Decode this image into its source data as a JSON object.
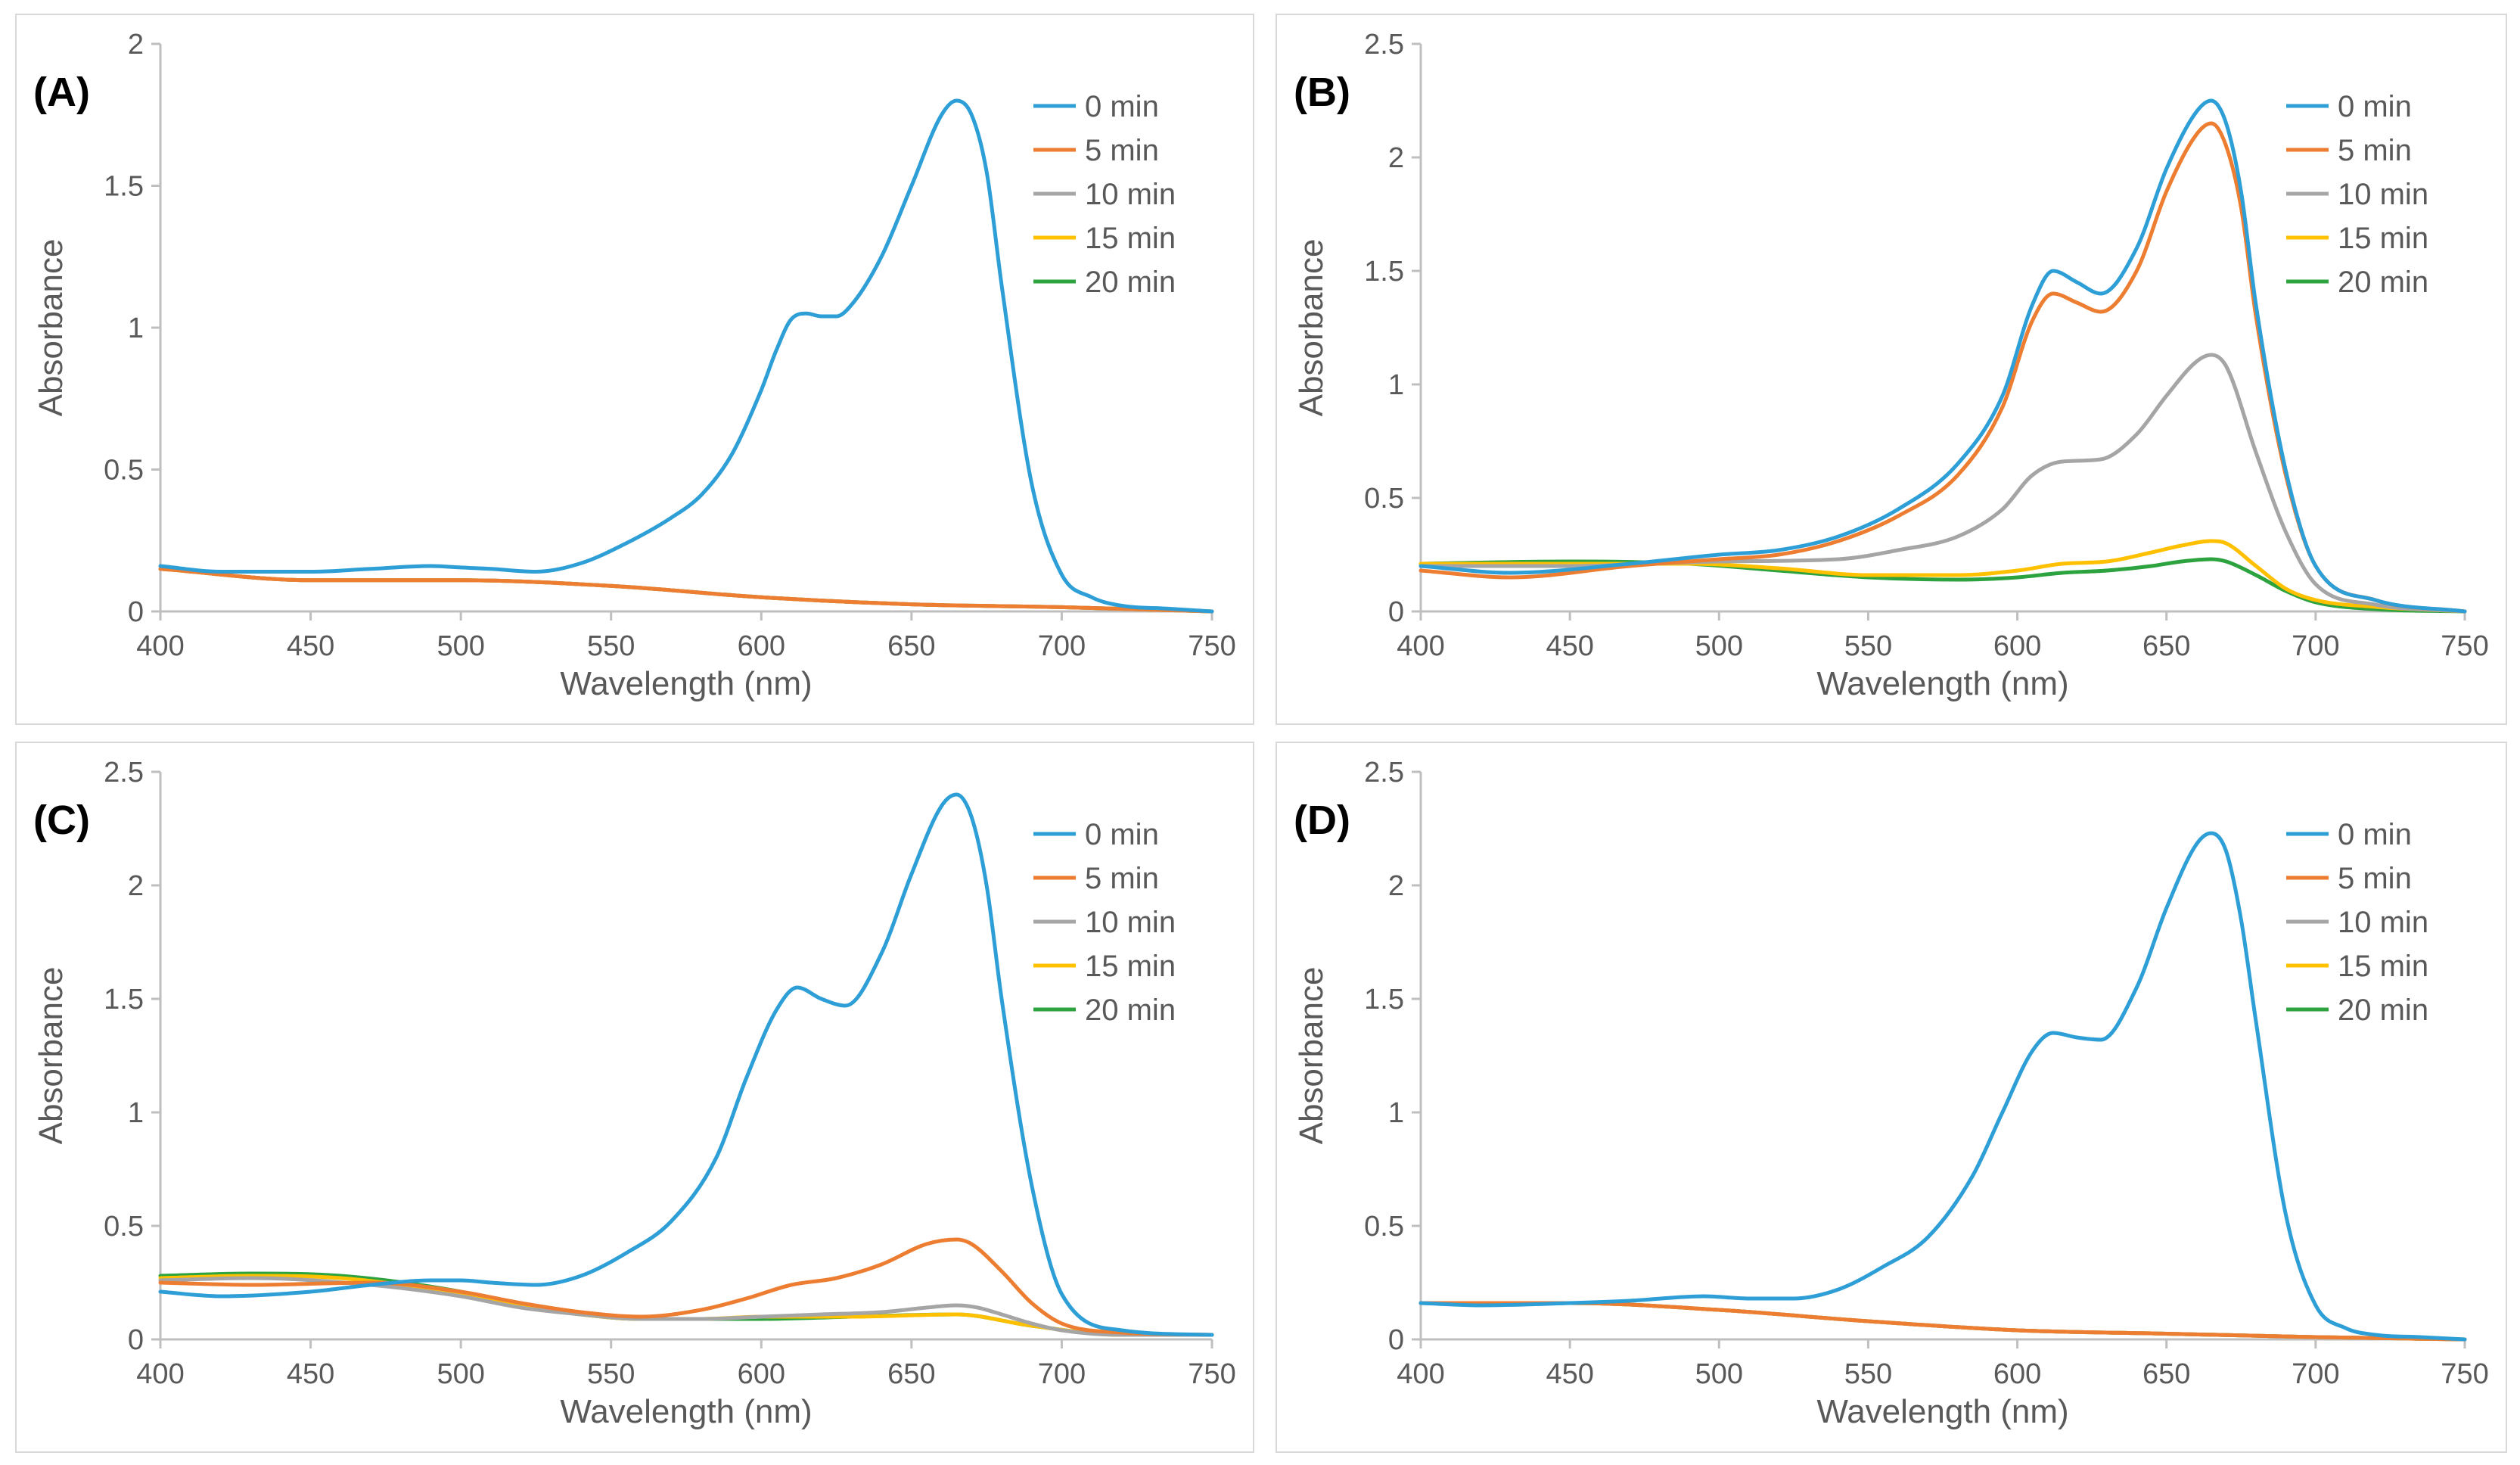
{
  "colors": {
    "0 min": "#2e9fd6",
    "5 min": "#ed7d31",
    "10 min": "#a5a5a5",
    "15 min": "#ffc000",
    "20 min": "#2ca33f",
    "axis": "#bfbfbf",
    "text": "#595959"
  },
  "chart_data": [
    {
      "type": "line",
      "panel_label": "(A)",
      "xlabel": "Wavelength (nm)",
      "ylabel": "Absorbance",
      "xlim": [
        400,
        750
      ],
      "ylim": [
        0,
        2
      ],
      "xticks": [
        400,
        450,
        500,
        550,
        600,
        650,
        700,
        750
      ],
      "xtick_labels": [
        "400",
        "450",
        "500",
        "550",
        "600",
        "650",
        "700",
        "750"
      ],
      "yticks": [
        0,
        0.5,
        1,
        1.5,
        2
      ],
      "ytick_labels": [
        "0",
        "0.5",
        "1",
        "1.5",
        "2"
      ],
      "legend_position": "top-right",
      "grid": false,
      "series": [
        {
          "name": "0 min",
          "x": [
            400,
            420,
            450,
            470,
            490,
            500,
            510,
            525,
            540,
            555,
            570,
            580,
            590,
            600,
            605,
            610,
            615,
            620,
            625,
            630,
            640,
            650,
            660,
            665,
            670,
            675,
            680,
            690,
            700,
            710,
            720,
            735,
            750
          ],
          "y": [
            0.16,
            0.14,
            0.14,
            0.15,
            0.16,
            0.155,
            0.15,
            0.14,
            0.17,
            0.24,
            0.33,
            0.41,
            0.55,
            0.78,
            0.92,
            1.03,
            1.05,
            1.04,
            1.04,
            1.08,
            1.25,
            1.5,
            1.75,
            1.8,
            1.75,
            1.55,
            1.15,
            0.45,
            0.13,
            0.05,
            0.02,
            0.01,
            0.0
          ]
        },
        {
          "name": "5 min",
          "x": [
            400,
            450,
            500,
            550,
            600,
            650,
            700,
            750
          ],
          "y": [
            0.15,
            0.11,
            0.11,
            0.09,
            0.05,
            0.025,
            0.015,
            0.0
          ]
        },
        {
          "name": "10 min",
          "x": [
            400,
            450,
            500,
            550,
            600,
            650,
            700,
            750
          ],
          "y": [
            0.15,
            0.11,
            0.11,
            0.09,
            0.05,
            0.025,
            0.015,
            0.0
          ]
        },
        {
          "name": "15 min",
          "x": [
            400,
            450,
            500,
            550,
            600,
            650,
            700,
            750
          ],
          "y": [
            0.15,
            0.11,
            0.11,
            0.09,
            0.05,
            0.025,
            0.015,
            0.0
          ]
        },
        {
          "name": "20 min",
          "x": [
            400,
            450,
            500,
            550,
            600,
            650,
            700,
            750
          ],
          "y": [
            0.15,
            0.11,
            0.11,
            0.09,
            0.05,
            0.025,
            0.015,
            0.0
          ]
        }
      ]
    },
    {
      "type": "line",
      "panel_label": "(B)",
      "xlabel": "Wavelength (nm)",
      "ylabel": "Absorbance",
      "xlim": [
        400,
        750
      ],
      "ylim": [
        0,
        2.5
      ],
      "xticks": [
        400,
        450,
        500,
        550,
        600,
        650,
        700,
        750
      ],
      "xtick_labels": [
        "400",
        "450",
        "500",
        "550",
        "600",
        "650",
        "700",
        "750"
      ],
      "yticks": [
        0,
        0.5,
        1,
        1.5,
        2,
        2.5
      ],
      "ytick_labels": [
        "0",
        "0.5",
        "1",
        "1.5",
        "2",
        "2.5"
      ],
      "legend_position": "top-right",
      "grid": false,
      "series": [
        {
          "name": "0 min",
          "x": [
            400,
            430,
            470,
            500,
            520,
            540,
            560,
            580,
            595,
            605,
            612,
            620,
            628,
            640,
            650,
            660,
            665,
            670,
            675,
            680,
            690,
            700,
            720,
            750
          ],
          "y": [
            0.2,
            0.17,
            0.21,
            0.25,
            0.27,
            0.33,
            0.45,
            0.65,
            0.95,
            1.35,
            1.5,
            1.45,
            1.4,
            1.6,
            1.95,
            2.2,
            2.25,
            2.15,
            1.85,
            1.35,
            0.62,
            0.2,
            0.05,
            0.0
          ]
        },
        {
          "name": "5 min",
          "x": [
            400,
            430,
            470,
            500,
            520,
            540,
            560,
            580,
            595,
            605,
            612,
            620,
            628,
            640,
            650,
            660,
            665,
            670,
            675,
            680,
            690,
            700,
            720,
            750
          ],
          "y": [
            0.18,
            0.15,
            0.2,
            0.23,
            0.25,
            0.31,
            0.42,
            0.6,
            0.9,
            1.28,
            1.4,
            1.36,
            1.32,
            1.5,
            1.85,
            2.1,
            2.15,
            2.05,
            1.78,
            1.3,
            0.6,
            0.2,
            0.05,
            0.0
          ]
        },
        {
          "name": "10 min",
          "x": [
            400,
            450,
            500,
            540,
            560,
            580,
            595,
            605,
            615,
            628,
            640,
            650,
            660,
            665,
            670,
            680,
            690,
            700,
            720,
            750
          ],
          "y": [
            0.2,
            0.2,
            0.22,
            0.23,
            0.27,
            0.33,
            0.45,
            0.6,
            0.66,
            0.67,
            0.78,
            0.95,
            1.1,
            1.13,
            1.08,
            0.7,
            0.35,
            0.12,
            0.03,
            0.0
          ]
        },
        {
          "name": "15 min",
          "x": [
            400,
            450,
            490,
            520,
            550,
            580,
            600,
            615,
            630,
            645,
            655,
            665,
            670,
            680,
            690,
            700,
            720,
            750
          ],
          "y": [
            0.21,
            0.21,
            0.21,
            0.19,
            0.16,
            0.16,
            0.18,
            0.21,
            0.22,
            0.26,
            0.29,
            0.31,
            0.3,
            0.2,
            0.1,
            0.05,
            0.02,
            0.0
          ]
        },
        {
          "name": "20 min",
          "x": [
            400,
            450,
            490,
            520,
            550,
            580,
            600,
            615,
            630,
            645,
            655,
            665,
            670,
            680,
            690,
            700,
            720,
            750
          ],
          "y": [
            0.21,
            0.22,
            0.21,
            0.18,
            0.15,
            0.14,
            0.15,
            0.17,
            0.18,
            0.2,
            0.22,
            0.23,
            0.22,
            0.16,
            0.09,
            0.04,
            0.01,
            0.0
          ]
        }
      ]
    },
    {
      "type": "line",
      "panel_label": "(C)",
      "xlabel": "Wavelength (nm)",
      "ylabel": "Absorbance",
      "xlim": [
        400,
        750
      ],
      "ylim": [
        0,
        2.5
      ],
      "xticks": [
        400,
        450,
        500,
        550,
        600,
        650,
        700,
        750
      ],
      "xtick_labels": [
        "400",
        "450",
        "500",
        "550",
        "600",
        "650",
        "700",
        "750"
      ],
      "yticks": [
        0,
        0.5,
        1,
        1.5,
        2,
        2.5
      ],
      "ytick_labels": [
        "0",
        "0.5",
        "1",
        "1.5",
        "2",
        "2.5"
      ],
      "legend_position": "top-right",
      "grid": false,
      "series": [
        {
          "name": "0 min",
          "x": [
            400,
            420,
            450,
            470,
            490,
            500,
            510,
            525,
            540,
            555,
            570,
            585,
            595,
            605,
            612,
            620,
            628,
            640,
            650,
            660,
            665,
            670,
            675,
            680,
            690,
            700,
            720,
            750
          ],
          "y": [
            0.21,
            0.19,
            0.21,
            0.24,
            0.26,
            0.26,
            0.25,
            0.24,
            0.28,
            0.38,
            0.52,
            0.8,
            1.15,
            1.45,
            1.55,
            1.5,
            1.47,
            1.7,
            2.05,
            2.35,
            2.4,
            2.3,
            2.0,
            1.5,
            0.68,
            0.2,
            0.04,
            0.02
          ]
        },
        {
          "name": "5 min",
          "x": [
            400,
            430,
            470,
            500,
            520,
            540,
            560,
            580,
            595,
            610,
            625,
            640,
            655,
            665,
            670,
            680,
            690,
            700,
            720,
            750
          ],
          "y": [
            0.25,
            0.24,
            0.25,
            0.21,
            0.16,
            0.12,
            0.1,
            0.13,
            0.18,
            0.24,
            0.27,
            0.33,
            0.42,
            0.44,
            0.42,
            0.3,
            0.16,
            0.07,
            0.03,
            0.02
          ]
        },
        {
          "name": "10 min",
          "x": [
            400,
            430,
            470,
            500,
            520,
            540,
            560,
            580,
            600,
            620,
            640,
            655,
            665,
            672,
            680,
            690,
            700,
            720,
            750
          ],
          "y": [
            0.26,
            0.27,
            0.24,
            0.19,
            0.14,
            0.11,
            0.09,
            0.09,
            0.1,
            0.11,
            0.12,
            0.14,
            0.15,
            0.14,
            0.11,
            0.07,
            0.04,
            0.02,
            0.02
          ]
        },
        {
          "name": "15 min",
          "x": [
            400,
            430,
            460,
            500,
            520,
            540,
            560,
            580,
            600,
            630,
            665,
            690,
            720,
            750
          ],
          "y": [
            0.27,
            0.28,
            0.27,
            0.2,
            0.15,
            0.11,
            0.09,
            0.09,
            0.1,
            0.1,
            0.11,
            0.06,
            0.02,
            0.02
          ]
        },
        {
          "name": "20 min",
          "x": [
            400,
            430,
            460,
            500,
            520,
            540,
            560,
            580,
            600,
            630,
            665,
            690,
            720,
            750
          ],
          "y": [
            0.28,
            0.29,
            0.28,
            0.21,
            0.15,
            0.11,
            0.09,
            0.09,
            0.09,
            0.1,
            0.11,
            0.06,
            0.02,
            0.02
          ]
        }
      ]
    },
    {
      "type": "line",
      "panel_label": "(D)",
      "xlabel": "Wavelength (nm)",
      "ylabel": "Absorbance",
      "xlim": [
        400,
        750
      ],
      "ylim": [
        0,
        2.5
      ],
      "xticks": [
        400,
        450,
        500,
        550,
        600,
        650,
        700,
        750
      ],
      "xtick_labels": [
        "400",
        "450",
        "500",
        "550",
        "600",
        "650",
        "700",
        "750"
      ],
      "yticks": [
        0,
        0.5,
        1,
        1.5,
        2,
        2.5
      ],
      "ytick_labels": [
        "0",
        "0.5",
        "1",
        "1.5",
        "2",
        "2.5"
      ],
      "legend_position": "top-right",
      "grid": false,
      "series": [
        {
          "name": "0 min",
          "x": [
            400,
            420,
            450,
            470,
            495,
            510,
            525,
            540,
            555,
            570,
            585,
            595,
            605,
            612,
            620,
            628,
            640,
            650,
            660,
            665,
            670,
            675,
            680,
            690,
            700,
            710,
            720,
            735,
            750
          ],
          "y": [
            0.16,
            0.15,
            0.16,
            0.17,
            0.19,
            0.18,
            0.18,
            0.22,
            0.32,
            0.45,
            0.72,
            1.0,
            1.27,
            1.35,
            1.33,
            1.32,
            1.55,
            1.9,
            2.18,
            2.23,
            2.15,
            1.85,
            1.4,
            0.55,
            0.15,
            0.05,
            0.02,
            0.01,
            0.0
          ]
        },
        {
          "name": "5 min",
          "x": [
            400,
            450,
            500,
            550,
            600,
            650,
            700,
            750
          ],
          "y": [
            0.16,
            0.16,
            0.13,
            0.08,
            0.04,
            0.025,
            0.01,
            0.0
          ]
        },
        {
          "name": "10 min",
          "x": [
            400,
            450,
            500,
            550,
            600,
            650,
            700,
            750
          ],
          "y": [
            0.16,
            0.16,
            0.13,
            0.08,
            0.04,
            0.025,
            0.01,
            0.0
          ]
        },
        {
          "name": "15 min",
          "x": [
            400,
            450,
            500,
            550,
            600,
            650,
            700,
            750
          ],
          "y": [
            0.16,
            0.16,
            0.13,
            0.08,
            0.04,
            0.025,
            0.01,
            0.0
          ]
        },
        {
          "name": "20 min",
          "x": [
            400,
            450,
            500,
            550,
            600,
            650,
            700,
            750
          ],
          "y": [
            0.16,
            0.16,
            0.13,
            0.08,
            0.04,
            0.025,
            0.01,
            0.0
          ]
        }
      ]
    }
  ]
}
